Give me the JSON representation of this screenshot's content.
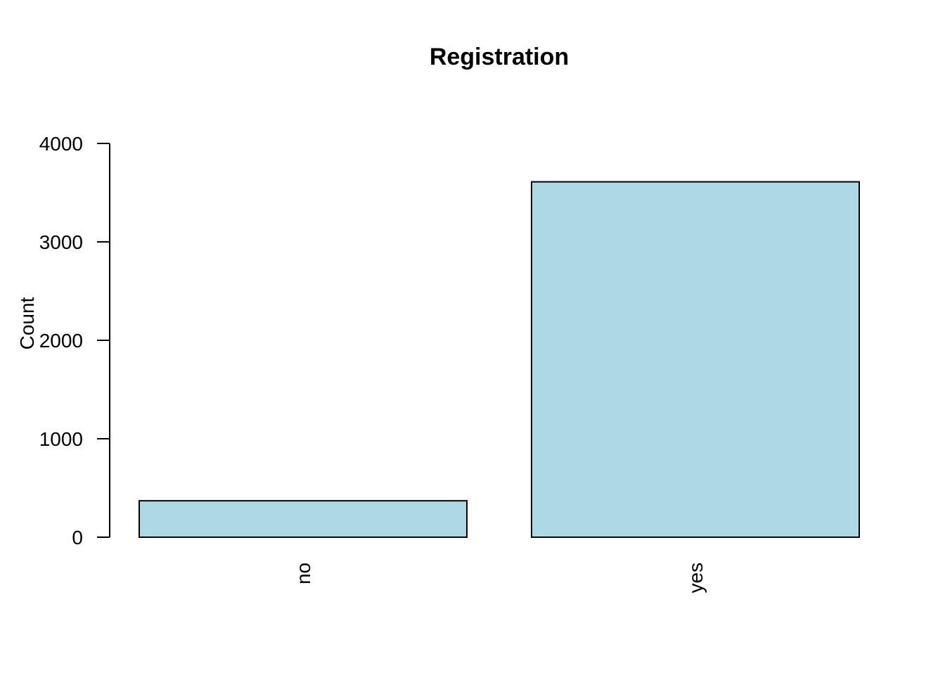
{
  "chart_data": {
    "type": "bar",
    "title": "Registration",
    "xlabel": "",
    "ylabel": "Count",
    "categories": [
      "no",
      "yes"
    ],
    "values": [
      370,
      3610
    ],
    "ylim": [
      0,
      4000
    ],
    "yticks": [
      0,
      1000,
      2000,
      3000,
      4000
    ],
    "ytick_labels": [
      "0",
      "1000",
      "2000",
      "3000",
      "4000"
    ],
    "bar_color": "#add8e6",
    "bar_edge_color": "#000000",
    "grid": false,
    "legend": "none",
    "x_tick_orientation": "vertical"
  }
}
